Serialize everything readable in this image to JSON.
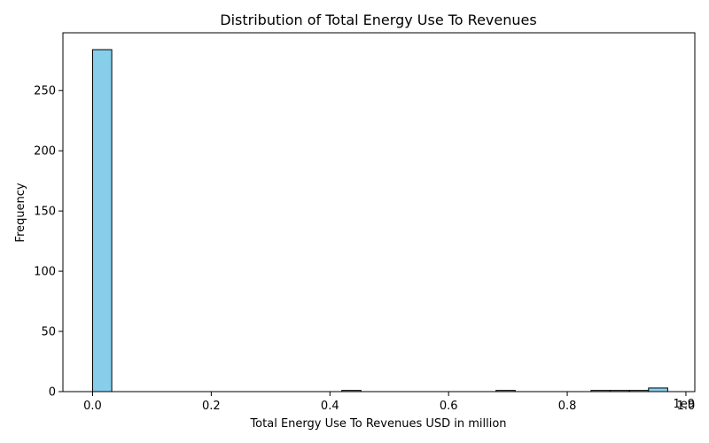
{
  "chart_data": {
    "type": "bar",
    "title": "Distribution of Total Energy Use To Revenues",
    "xlabel": "Total Energy Use To Revenues USD in million",
    "ylabel": "Frequency",
    "x_offset_label": "1e9",
    "xlim": [
      -0.05,
      1.015
    ],
    "ylim": [
      0,
      298
    ],
    "x_scale": 1000000000,
    "bin_width": 0.0323,
    "bins": [
      {
        "x": 0.0,
        "count": 284
      },
      {
        "x": 0.42,
        "count": 1
      },
      {
        "x": 0.68,
        "count": 1
      },
      {
        "x": 0.84,
        "count": 1
      },
      {
        "x": 0.872,
        "count": 1
      },
      {
        "x": 0.905,
        "count": 1
      },
      {
        "x": 0.937,
        "count": 3
      }
    ],
    "x_ticks": [
      {
        "value": 0.0,
        "label": "0.0"
      },
      {
        "value": 0.2,
        "label": "0.2"
      },
      {
        "value": 0.4,
        "label": "0.4"
      },
      {
        "value": 0.6,
        "label": "0.6"
      },
      {
        "value": 0.8,
        "label": "0.8"
      },
      {
        "value": 1.0,
        "label": "1.0"
      }
    ],
    "y_ticks": [
      {
        "value": 0,
        "label": "0"
      },
      {
        "value": 50,
        "label": "50"
      },
      {
        "value": 100,
        "label": "100"
      },
      {
        "value": 150,
        "label": "150"
      },
      {
        "value": 200,
        "label": "200"
      },
      {
        "value": 250,
        "label": "250"
      }
    ],
    "grid": false,
    "bar_color": "#87ceeb",
    "edge_color": "#000000"
  }
}
